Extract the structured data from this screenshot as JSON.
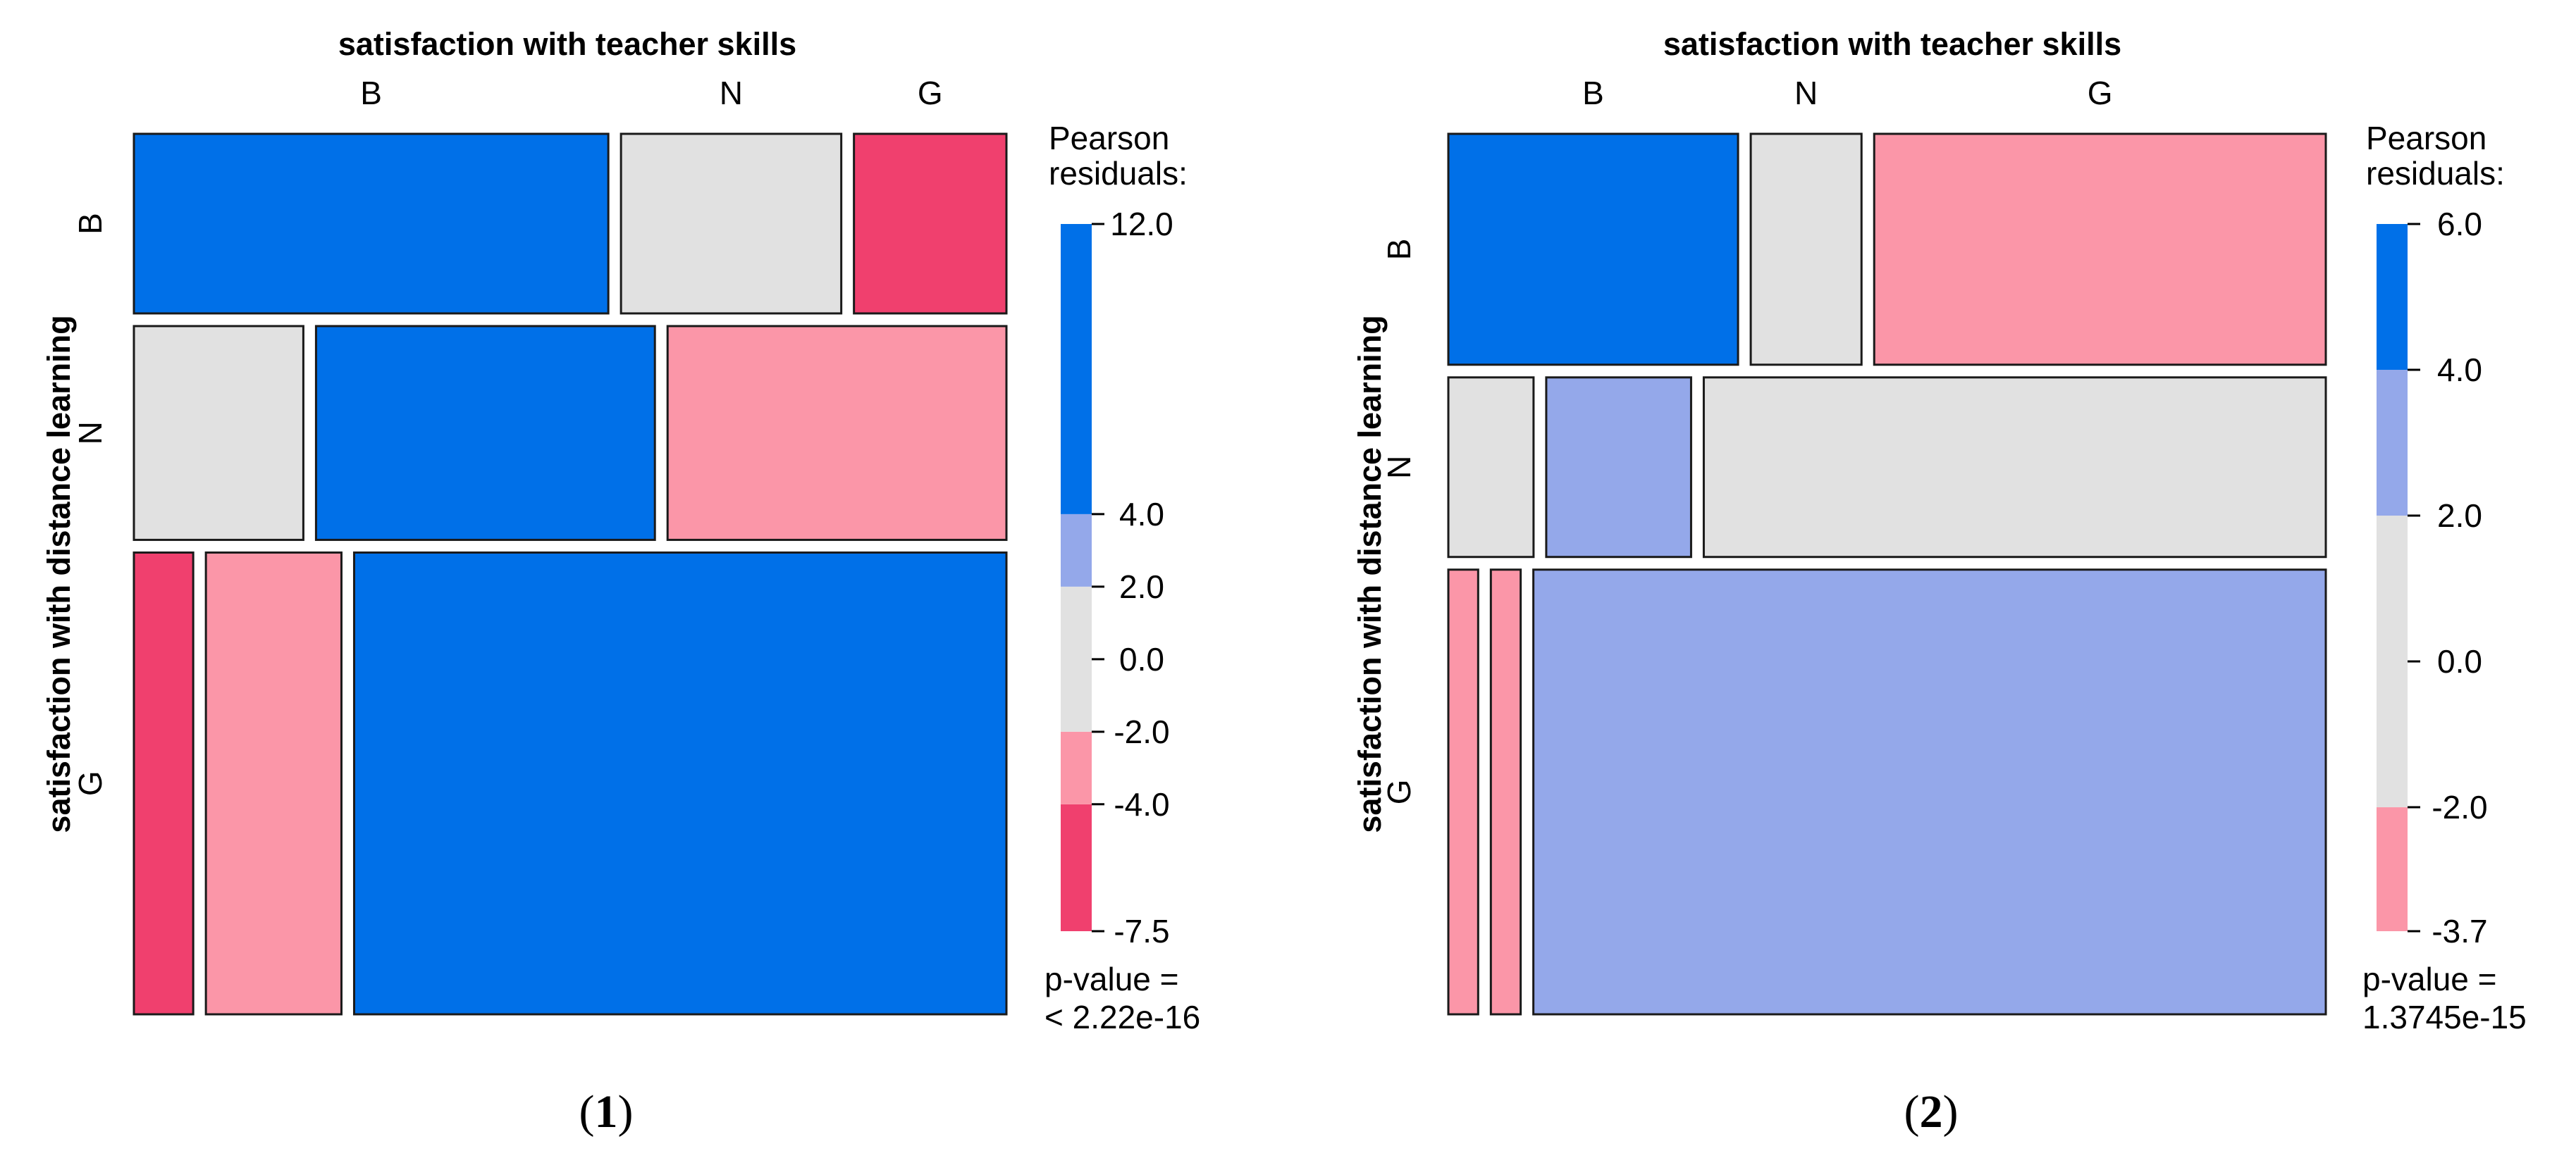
{
  "chart_data": [
    {
      "type": "mosaic",
      "caption": "1",
      "xlabel": "satisfaction with teacher skills",
      "ylabel": "satisfaction with distance learning",
      "row_levels": [
        "B",
        "N",
        "G"
      ],
      "col_levels": [
        "B",
        "N",
        "G"
      ],
      "row_proportions": [
        0.21,
        0.25,
        0.54
      ],
      "cell_proportions": [
        [
          0.56,
          0.26,
          0.18
        ],
        [
          0.2,
          0.4,
          0.4
        ],
        [
          0.07,
          0.16,
          0.77
        ]
      ],
      "cell_shading": [
        [
          "12.0",
          "0.0",
          "-7.5"
        ],
        [
          "0.0",
          "12.0",
          "-3.0"
        ],
        [
          "-7.5",
          "-3.0",
          "12.0"
        ]
      ],
      "legend": {
        "title": "Pearson\nresiduals:",
        "min": -7.5,
        "max": 12.0,
        "ticks": [
          "12.0",
          "4.0",
          "2.0",
          "0.0",
          "-2.0",
          "-4.0",
          "-7.5"
        ],
        "bands": [
          {
            "from": -7.5,
            "to": -4,
            "color": "#f0406e"
          },
          {
            "from": -4,
            "to": -2,
            "color": "#fb96a8"
          },
          {
            "from": -2,
            "to": 2,
            "color": "#e1e1e1"
          },
          {
            "from": 2,
            "to": 4,
            "color": "#94a8ea"
          },
          {
            "from": 4,
            "to": 12,
            "color": "#0070e8"
          }
        ]
      },
      "p_value_label": "p-value =",
      "p_value": "< 2.22e-16"
    },
    {
      "type": "mosaic",
      "caption": "2",
      "xlabel": "satisfaction with teacher skills",
      "ylabel": "satisfaction with distance learning",
      "row_levels": [
        "B",
        "N",
        "G"
      ],
      "col_levels": [
        "B",
        "N",
        "G"
      ],
      "row_proportions": [
        0.27,
        0.21,
        0.52
      ],
      "cell_proportions": [
        [
          0.34,
          0.13,
          0.53
        ],
        [
          0.1,
          0.17,
          0.73
        ],
        [
          0.035,
          0.035,
          0.93
        ]
      ],
      "cell_shading": [
        [
          "6.0",
          "0.0",
          "-3.0"
        ],
        [
          "0.0",
          "3.0",
          "0.0"
        ],
        [
          "-3.0",
          "-3.0",
          "3.0"
        ]
      ],
      "legend": {
        "title": "Pearson\nresiduals:",
        "min": -3.7,
        "max": 6.0,
        "ticks": [
          "6.0",
          "4.0",
          "2.0",
          "0.0",
          "-2.0",
          "-3.7"
        ],
        "bands": [
          {
            "from": -3.7,
            "to": -2,
            "color": "#fb96a8"
          },
          {
            "from": -2,
            "to": 2,
            "color": "#e1e1e1"
          },
          {
            "from": 2,
            "to": 4,
            "color": "#94a8ea"
          },
          {
            "from": 4,
            "to": 6,
            "color": "#0070e8"
          }
        ]
      },
      "p_value_label": "p-value =",
      "p_value": "1.3745e-15"
    }
  ]
}
